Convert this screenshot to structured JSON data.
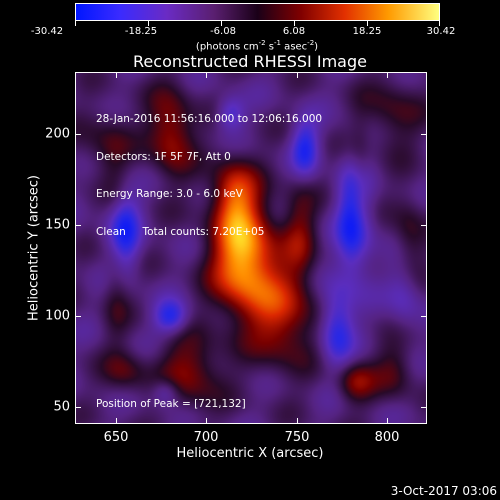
{
  "colorbar": {
    "labels": [
      "-30.42",
      "-18.25",
      "-6.08",
      "6.08",
      "18.25",
      "30.42"
    ],
    "units_prefix": "(photons cm",
    "units_exp1": "-2",
    "units_mid1": " s",
    "units_exp2": "-1",
    "units_mid2": " asec",
    "units_exp3": "-2",
    "units_suffix": ")"
  },
  "title": "Reconstructed RHESSI Image",
  "info": {
    "line1": "28-Jan-2016 11:56:16.000 to 12:06:16.000",
    "line2": "Detectors: 1F 5F 7F, Att 0",
    "line3": "Energy Range: 3.0 - 6.0 keV",
    "line4": "Clean     Total counts: 7.20E+05"
  },
  "peak_text": "Position of Peak = [721,132]",
  "axes": {
    "xlabel": "Heliocentric X (arcsec)",
    "ylabel": "Heliocentric Y (arcsec)",
    "xticks": [
      "650",
      "700",
      "750",
      "800"
    ],
    "yticks": [
      "200",
      "150",
      "100",
      "50"
    ],
    "xrange": [
      627,
      821
    ],
    "yrange": [
      39,
      233
    ]
  },
  "timestamp": "3-Oct-2017 03:06",
  "colors": {
    "background": "#000000",
    "foreground": "#ffffff"
  }
}
